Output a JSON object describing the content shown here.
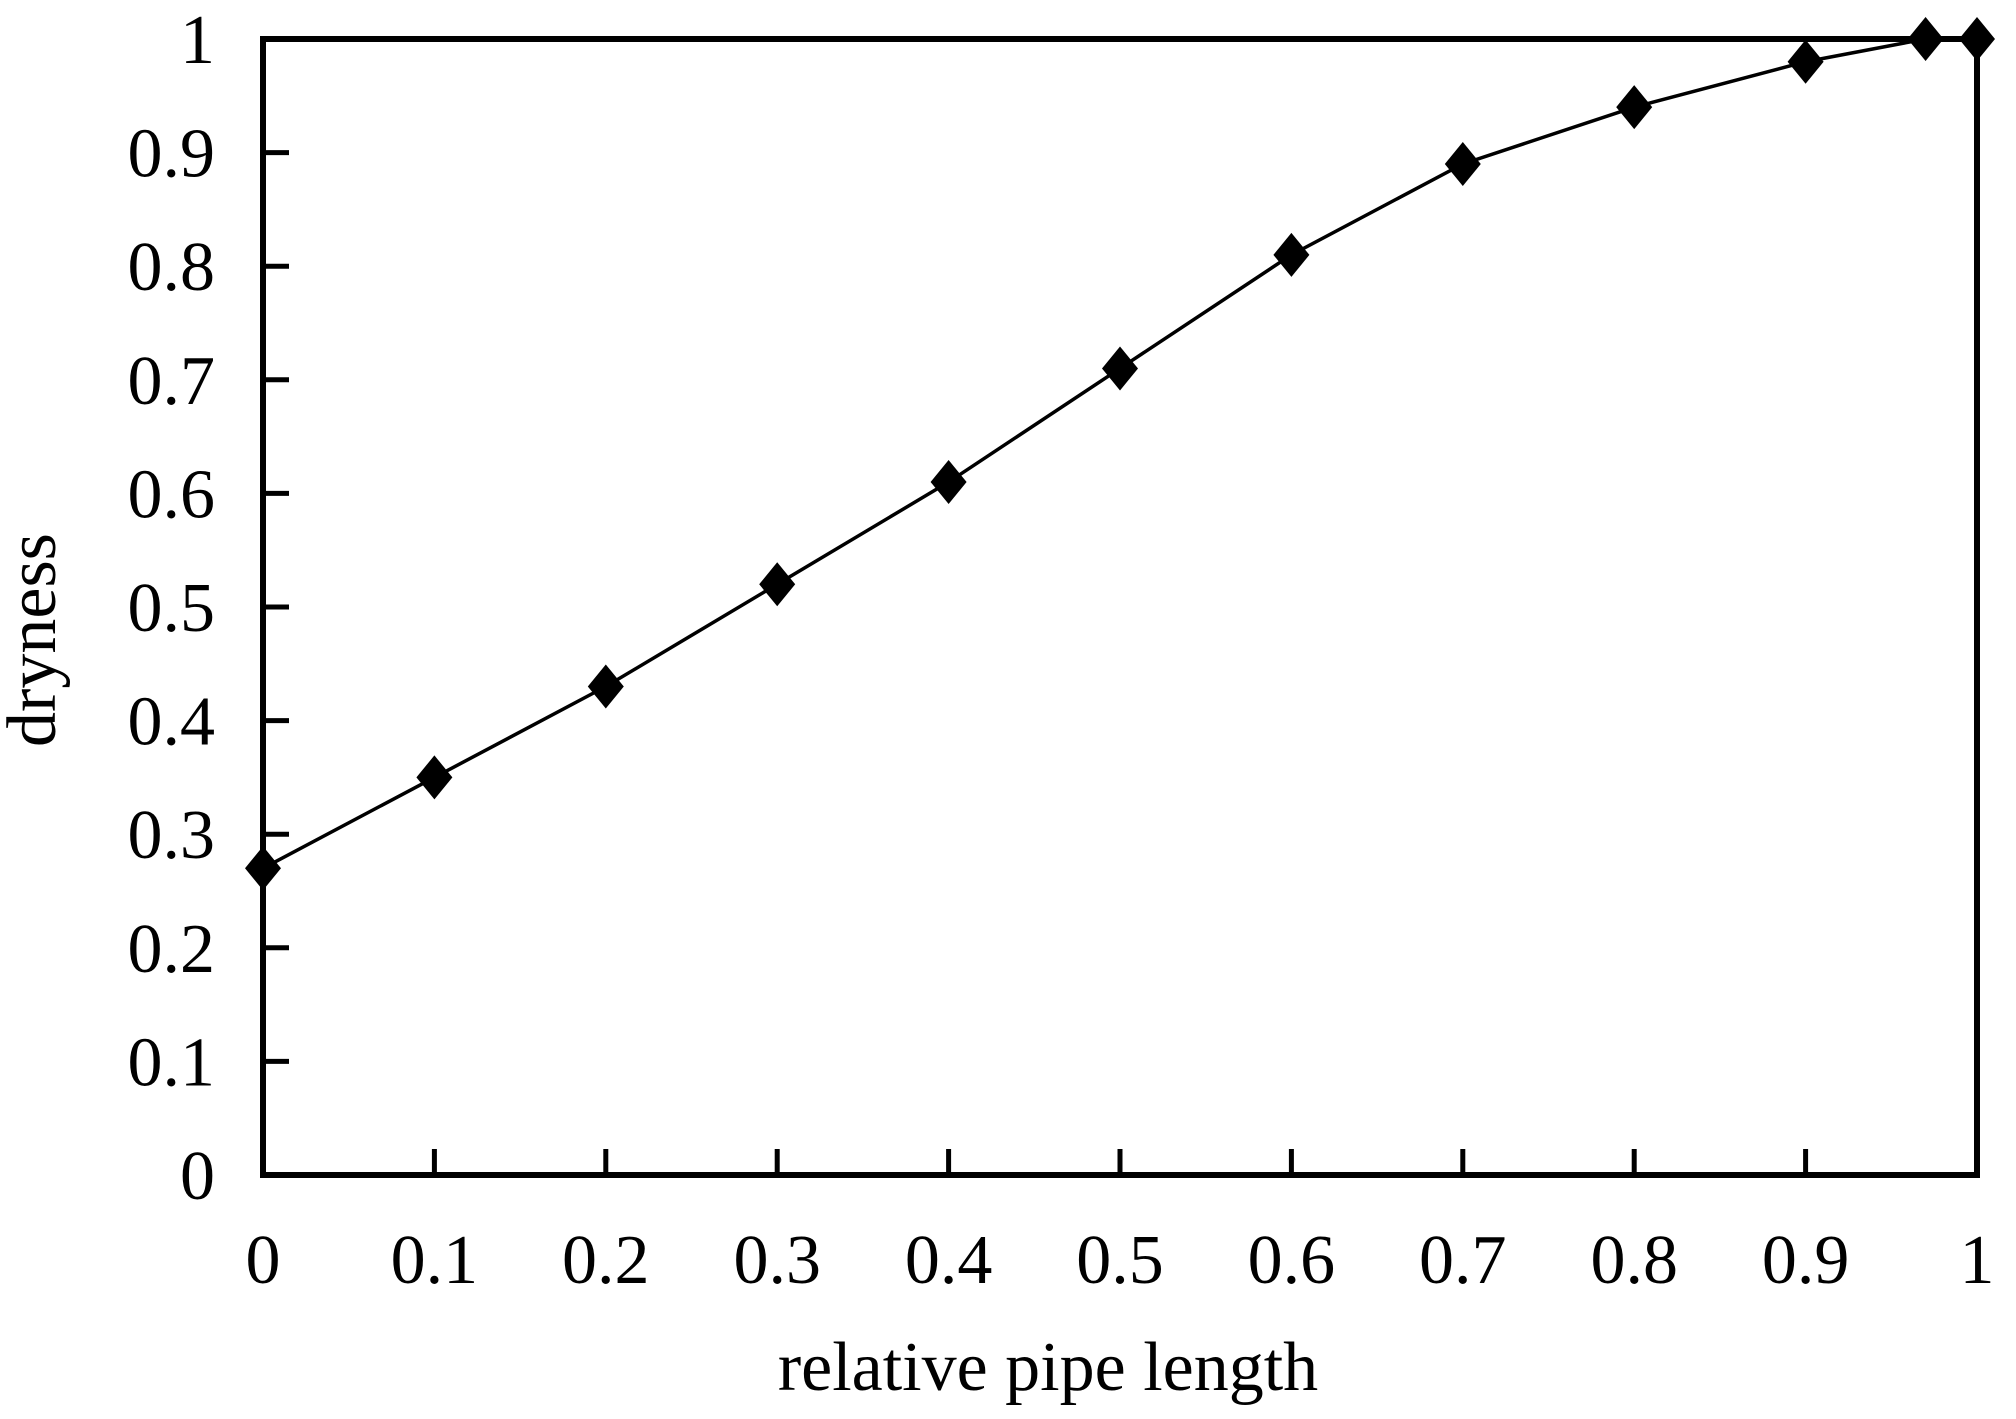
{
  "page": {
    "background": "#ffffff",
    "text_color": "#000000"
  },
  "chart_data": {
    "type": "line",
    "title": "",
    "xlabel": "relative pipe length",
    "ylabel": "dryness",
    "x": [
      0,
      0.1,
      0.2,
      0.3,
      0.4,
      0.5,
      0.6,
      0.7,
      0.8,
      0.9,
      0.97,
      1.0
    ],
    "y": [
      0.27,
      0.35,
      0.43,
      0.52,
      0.61,
      0.71,
      0.81,
      0.89,
      0.94,
      0.98,
      1.0,
      1.0
    ],
    "xlim": [
      0,
      1
    ],
    "ylim": [
      0,
      1
    ],
    "x_ticks": [
      0,
      0.1,
      0.2,
      0.3,
      0.4,
      0.5,
      0.6,
      0.7,
      0.8,
      0.9,
      1
    ],
    "x_tick_labels": [
      "0",
      "0.1",
      "0.2",
      "0.3",
      "0.4",
      "0.5",
      "0.6",
      "0.7",
      "0.8",
      "0.9",
      "1"
    ],
    "y_ticks": [
      0,
      0.1,
      0.2,
      0.3,
      0.4,
      0.5,
      0.6,
      0.7,
      0.8,
      0.9,
      1
    ],
    "y_tick_labels": [
      "0",
      "0.1",
      "0.2",
      "0.3",
      "0.4",
      "0.5",
      "0.6",
      "0.7",
      "0.8",
      "0.9",
      "1"
    ],
    "grid": false,
    "legend": null,
    "marker": "diamond",
    "line_color": "#000000",
    "marker_color": "#000000",
    "frame_color": "#000000"
  }
}
